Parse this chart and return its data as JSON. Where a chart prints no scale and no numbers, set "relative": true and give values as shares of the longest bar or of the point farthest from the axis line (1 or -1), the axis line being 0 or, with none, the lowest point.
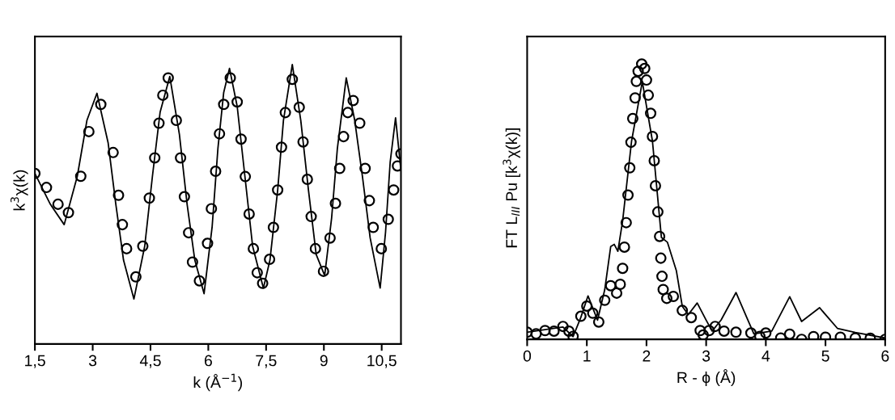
{
  "chart_data": [
    {
      "type": "line",
      "relative": true,
      "xlabel": "k (Å$^{−1}$)",
      "ylabel": "k$^{3}$χ(k)",
      "xlim": [
        1.5,
        11.0
      ],
      "xticks": [
        {
          "value": 1.5,
          "label": "1,5"
        },
        3,
        {
          "value": 4.5,
          "label": "4,5"
        },
        6,
        {
          "value": 7.5,
          "label": "7,5"
        },
        9,
        {
          "value": 10.5,
          "label": "10,5"
        }
      ],
      "series": [
        {
          "type": "scatter",
          "marker": "circle",
          "color": "#000000",
          "x": [
            1.5,
            1.8,
            2.1,
            2.37,
            2.69,
            2.9,
            3.21,
            3.53,
            3.67,
            3.77,
            3.88,
            4.12,
            4.3,
            4.47,
            4.61,
            4.72,
            4.82,
            4.96,
            5.17,
            5.28,
            5.38,
            5.49,
            5.59,
            5.77,
            5.98,
            6.08,
            6.19,
            6.29,
            6.4,
            6.57,
            6.75,
            6.85,
            6.96,
            7.06,
            7.17,
            7.27,
            7.41,
            7.59,
            7.69,
            7.8,
            7.9,
            8.0,
            8.18,
            8.36,
            8.46,
            8.57,
            8.67,
            8.78,
            8.99,
            9.16,
            9.3,
            9.41,
            9.51,
            9.62,
            9.76,
            9.93,
            10.07,
            10.18,
            10.28,
            10.49,
            10.67,
            10.81,
            10.91,
            11.0
          ],
          "values": [
            0.61,
            0.56,
            0.5,
            0.47,
            0.6,
            0.76,
            0.857,
            0.685,
            0.532,
            0.427,
            0.341,
            0.24,
            0.35,
            0.522,
            0.666,
            0.79,
            0.89,
            0.952,
            0.8,
            0.666,
            0.527,
            0.398,
            0.293,
            0.226,
            0.36,
            0.484,
            0.618,
            0.752,
            0.857,
            0.952,
            0.866,
            0.733,
            0.599,
            0.465,
            0.341,
            0.255,
            0.217,
            0.303,
            0.417,
            0.551,
            0.704,
            0.828,
            0.947,
            0.847,
            0.723,
            0.589,
            0.456,
            0.341,
            0.26,
            0.379,
            0.503,
            0.628,
            0.742,
            0.828,
            0.871,
            0.79,
            0.628,
            0.513,
            0.417,
            0.341,
            0.446,
            0.551,
            0.637,
            0.68
          ]
        },
        {
          "line_style": "solid",
          "color": "#000000",
          "x": [
            1.5,
            1.9,
            2.26,
            2.6,
            2.85,
            3.11,
            3.4,
            3.6,
            3.8,
            4.07,
            4.35,
            4.55,
            4.75,
            5.0,
            5.25,
            5.45,
            5.65,
            5.89,
            6.1,
            6.25,
            6.4,
            6.55,
            6.75,
            6.95,
            7.15,
            7.43,
            7.6,
            7.8,
            7.95,
            8.18,
            8.4,
            8.6,
            8.8,
            9.02,
            9.2,
            9.35,
            9.58,
            9.8,
            10.0,
            10.2,
            10.46,
            10.6,
            10.72,
            10.86,
            11.0
          ],
          "values": [
            0.61,
            0.5,
            0.427,
            0.6,
            0.8,
            0.897,
            0.72,
            0.5,
            0.3,
            0.161,
            0.35,
            0.6,
            0.83,
            0.957,
            0.75,
            0.5,
            0.3,
            0.18,
            0.42,
            0.7,
            0.9,
            0.986,
            0.85,
            0.6,
            0.35,
            0.2,
            0.3,
            0.55,
            0.8,
            1.0,
            0.8,
            0.55,
            0.32,
            0.245,
            0.45,
            0.7,
            0.952,
            0.8,
            0.6,
            0.38,
            0.2,
            0.4,
            0.65,
            0.809,
            0.62
          ]
        }
      ]
    },
    {
      "type": "line",
      "relative": true,
      "xlabel": "R - ϕ (Å)",
      "ylabel": "FT L$_{III}$ Pu [k$^{3}$χ(k)]",
      "xlim": [
        0,
        6
      ],
      "xticks": [
        0,
        1,
        2,
        3,
        4,
        5,
        6
      ],
      "series": [
        {
          "type": "scatter",
          "marker": "circle",
          "color": "#000000",
          "x": [
            0,
            0.15,
            0.3,
            0.45,
            0.6,
            0.7,
            0.77,
            0.9,
            1.0,
            1.1,
            1.2,
            1.3,
            1.4,
            1.5,
            1.56,
            1.6,
            1.63,
            1.66,
            1.69,
            1.72,
            1.74,
            1.77,
            1.81,
            1.83,
            1.86,
            1.92,
            1.97,
            2.0,
            2.03,
            2.07,
            2.1,
            2.13,
            2.15,
            2.19,
            2.22,
            2.24,
            2.26,
            2.28,
            2.34,
            2.45,
            2.6,
            2.75,
            2.9,
            2.95,
            3.05,
            3.15,
            3.3,
            3.5,
            3.75,
            3.9,
            4.0,
            4.25,
            4.4,
            4.6,
            4.8,
            5.0,
            5.25,
            5.5,
            5.75,
            6.0
          ],
          "values": [
            0.026,
            0.02,
            0.032,
            0.03,
            0.047,
            0.03,
            0.011,
            0.084,
            0.121,
            0.095,
            0.063,
            0.142,
            0.195,
            0.168,
            0.2,
            0.258,
            0.335,
            0.424,
            0.524,
            0.623,
            0.716,
            0.802,
            0.877,
            0.937,
            0.974,
            1.0,
            0.984,
            0.942,
            0.887,
            0.821,
            0.737,
            0.649,
            0.558,
            0.463,
            0.374,
            0.295,
            0.229,
            0.181,
            0.149,
            0.156,
            0.105,
            0.079,
            0.032,
            0.016,
            0.032,
            0.047,
            0.03,
            0.026,
            0.023,
            0.011,
            0.023,
            0.005,
            0.019,
            0.0,
            0.01,
            0.008,
            0.008,
            0.005,
            0.004,
            0.0
          ]
        },
        {
          "line_style": "solid",
          "color": "#000000",
          "x": [
            0,
            0.6,
            0.77,
            0.9,
            1.02,
            1.18,
            1.3,
            1.4,
            1.46,
            1.52,
            1.6,
            1.75,
            1.93,
            2.1,
            2.25,
            2.35,
            2.5,
            2.6,
            2.7,
            2.85,
            3.0,
            3.1,
            3.25,
            3.5,
            3.7,
            3.8,
            4.1,
            4.4,
            4.6,
            4.9,
            5.2,
            5.5,
            6.0
          ],
          "values": [
            0.026,
            0.045,
            0.01,
            0.08,
            0.158,
            0.07,
            0.18,
            0.337,
            0.345,
            0.32,
            0.43,
            0.72,
            0.936,
            0.72,
            0.37,
            0.353,
            0.25,
            0.12,
            0.09,
            0.132,
            0.07,
            0.03,
            0.07,
            0.17,
            0.07,
            0.02,
            0.03,
            0.155,
            0.065,
            0.115,
            0.04,
            0.025,
            0.005
          ]
        }
      ]
    }
  ]
}
